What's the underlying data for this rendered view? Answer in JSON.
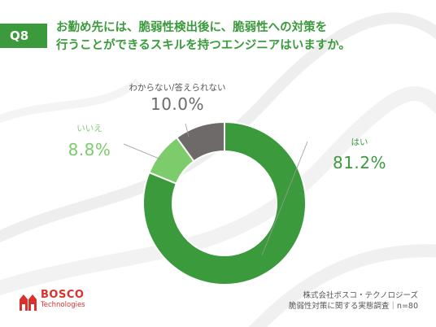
{
  "header": {
    "badge": "Q8",
    "title_line1": "お勤め先には、脆弱性検出後に、脆弱性への対策を",
    "title_line2": "行うことができるスキルを持つエンジニアはいますか。"
  },
  "colors": {
    "accent": "#3a9a3c",
    "slices": [
      "#3a9a3c",
      "#7ccc6c",
      "#6e6a6a"
    ],
    "brand_red": "#d9312b"
  },
  "chart_data": {
    "type": "pie",
    "style": "donut",
    "categories": [
      "はい",
      "いいえ",
      "わからない/答えられない"
    ],
    "values": [
      81.2,
      8.8,
      10.0
    ],
    "value_labels": [
      "81.2%",
      "8.8%",
      "10.0%"
    ]
  },
  "logo": {
    "name": "BOSCO",
    "sub": "Technologies",
    "icon": "bosco-house-logo-icon"
  },
  "footer": {
    "line1": "株式会社ボスコ・テクノロジーズ",
    "line2": "脆弱性対策に関する実態調査｜n=80"
  }
}
